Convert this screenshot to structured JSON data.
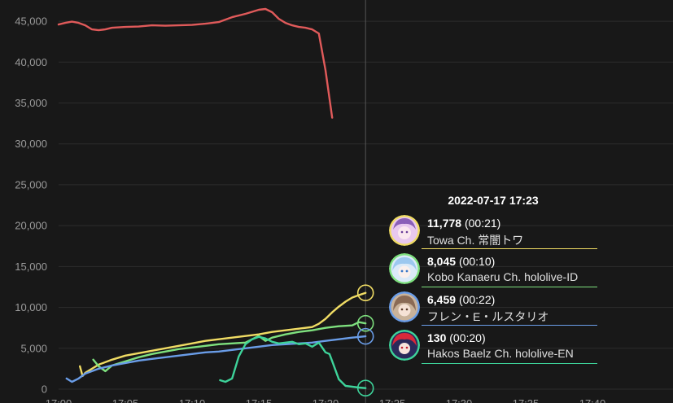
{
  "chart_data": {
    "type": "line",
    "title": "",
    "xlabel": "",
    "ylabel": "",
    "ylim": [
      0,
      47000
    ],
    "y_ticks": [
      0,
      5000,
      10000,
      15000,
      20000,
      25000,
      30000,
      35000,
      40000,
      45000
    ],
    "y_tick_labels": [
      "0",
      "5,000",
      "10,000",
      "15,000",
      "20,000",
      "25,000",
      "30,000",
      "35,000",
      "40,000",
      "45,000"
    ],
    "x_tick_labels": [
      "17:00",
      "17:05",
      "17:10",
      "17:15",
      "17:20",
      "17:25",
      "17:30",
      "17:35",
      "17:40"
    ],
    "x_range": [
      0,
      46
    ],
    "grid": true,
    "cursor_x": 23,
    "series": [
      {
        "color": "#e05a5a",
        "x": [
          0,
          0.5,
          1,
          1.5,
          2,
          2.5,
          3,
          3.5,
          4,
          5,
          6,
          7,
          8,
          9,
          10,
          11,
          12,
          13,
          14,
          15,
          15.5,
          16,
          16.5,
          17,
          17.5,
          18,
          18.5,
          19,
          19.5,
          20,
          20.5
        ],
        "y": [
          44600,
          44800,
          44950,
          44800,
          44500,
          44000,
          43900,
          44000,
          44200,
          44300,
          44350,
          44500,
          44450,
          44500,
          44550,
          44700,
          44900,
          45500,
          45900,
          46400,
          46500,
          46100,
          45300,
          44800,
          44500,
          44300,
          44200,
          44000,
          43500,
          39000,
          33200
        ]
      },
      {
        "name": "Towa Ch. 常闇トワ",
        "color": "#f0dc64",
        "x": [
          1.6,
          1.8,
          2,
          3,
          4,
          5,
          6,
          7,
          8,
          9,
          10,
          11,
          12,
          13,
          14,
          15,
          16,
          17,
          18,
          19,
          19.5,
          20,
          20.5,
          21,
          21.5,
          22,
          22.5,
          23
        ],
        "y": [
          2800,
          1600,
          2000,
          3000,
          3600,
          4100,
          4400,
          4700,
          5000,
          5300,
          5600,
          5900,
          6100,
          6300,
          6500,
          6700,
          7000,
          7200,
          7400,
          7600,
          8000,
          8600,
          9400,
          10100,
          10700,
          11200,
          11500,
          11778
        ]
      },
      {
        "name": "Kobo Kanaeru Ch. hololive-ID",
        "color": "#7ee07e",
        "x": [
          2.6,
          3,
          3.5,
          4,
          5,
          6,
          7,
          8,
          9,
          10,
          11,
          12,
          13,
          14,
          14.5,
          15,
          15.5,
          16,
          17,
          18,
          19,
          20,
          21,
          22,
          22.5,
          23
        ],
        "y": [
          3600,
          2800,
          2200,
          2900,
          3400,
          3900,
          4300,
          4600,
          4900,
          5100,
          5300,
          5500,
          5600,
          5700,
          6100,
          6500,
          5900,
          6300,
          6700,
          7000,
          7200,
          7500,
          7700,
          7800,
          8200,
          8045
        ]
      },
      {
        "name": "フレン・E・ルスタリオ",
        "color": "#6a9de8",
        "x": [
          0.6,
          1,
          1.5,
          2,
          3,
          4,
          5,
          6,
          7,
          8,
          9,
          10,
          11,
          12,
          13,
          14,
          15,
          16,
          17,
          18,
          19,
          20,
          21,
          22,
          23
        ],
        "y": [
          1300,
          900,
          1300,
          1900,
          2500,
          2900,
          3200,
          3500,
          3700,
          3900,
          4100,
          4300,
          4500,
          4600,
          4800,
          5000,
          5200,
          5400,
          5500,
          5600,
          5700,
          5900,
          6100,
          6300,
          6459
        ]
      },
      {
        "name": "Hakos Baelz Ch. hololive-EN",
        "color": "#3ed39a",
        "x": [
          12.1,
          12.5,
          13,
          13.5,
          14,
          14.5,
          15,
          15.5,
          16,
          16.5,
          17,
          17.5,
          18,
          18.5,
          19,
          19.5,
          20,
          20.3,
          20.6,
          21,
          21.5,
          22,
          22.5,
          23
        ],
        "y": [
          1100,
          900,
          1300,
          4000,
          5500,
          6100,
          6400,
          6200,
          5800,
          5600,
          5700,
          5800,
          5500,
          5600,
          5200,
          5700,
          4500,
          4300,
          3000,
          1200,
          400,
          300,
          200,
          130
        ]
      }
    ]
  },
  "tooltip": {
    "time": "2022-07-17 17:23",
    "rows": [
      {
        "value": "11,778",
        "duration": "(00:21)",
        "name": "Towa Ch. 常闇トワ",
        "color": "#f0dc64",
        "avatar_icon": "towa-avatar-icon"
      },
      {
        "value": "8,045",
        "duration": "(00:10)",
        "name": "Kobo Kanaeru Ch. hololive-ID",
        "color": "#7ee07e",
        "avatar_icon": "kobo-avatar-icon"
      },
      {
        "value": "6,459",
        "duration": "(00:22)",
        "name": "フレン・E・ルスタリオ",
        "color": "#6a9de8",
        "avatar_icon": "furen-avatar-icon"
      },
      {
        "value": "130",
        "duration": "(00:20)",
        "name": "Hakos Baelz Ch. hololive-EN",
        "color": "#3ed39a",
        "avatar_icon": "baelz-avatar-icon"
      }
    ]
  }
}
